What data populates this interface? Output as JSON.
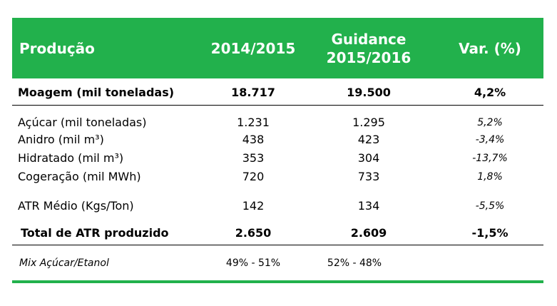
{
  "colors": {
    "accent": "#22b14c",
    "header_text": "#ffffff"
  },
  "header": {
    "col0": "Produção",
    "col1": "2014/2015",
    "col2_line1": "Guidance",
    "col2_line2": "2015/2016",
    "col3": "Var. (%)"
  },
  "rows": [
    {
      "label": "Moagem (mil toneladas)",
      "v1": "18.717",
      "v2": "19.500",
      "v3": "4,2%"
    },
    {
      "label": "Açúcar (mil toneladas)",
      "v1": "1.231",
      "v2": "1.295",
      "v3": "5,2%"
    },
    {
      "label": "Anidro (mil m³)",
      "v1": "438",
      "v2": "423",
      "v3": "-3,4%"
    },
    {
      "label": "Hidratado (mil m³)",
      "v1": "353",
      "v2": "304",
      "v3": "-13,7%"
    },
    {
      "label": "Cogeração (mil MWh)",
      "v1": "720",
      "v2": "733",
      "v3": "1,8%"
    },
    {
      "label": "ATR Médio (Kgs/Ton)",
      "v1": "142",
      "v2": "134",
      "v3": "-5,5%"
    },
    {
      "label": "Total de ATR produzido",
      "v1": "2.650",
      "v2": "2.609",
      "v3": "-1,5%"
    },
    {
      "label": "Mix Açúcar/Etanol",
      "v1": "49% - 51%",
      "v2": "52% - 48%",
      "v3": ""
    }
  ]
}
